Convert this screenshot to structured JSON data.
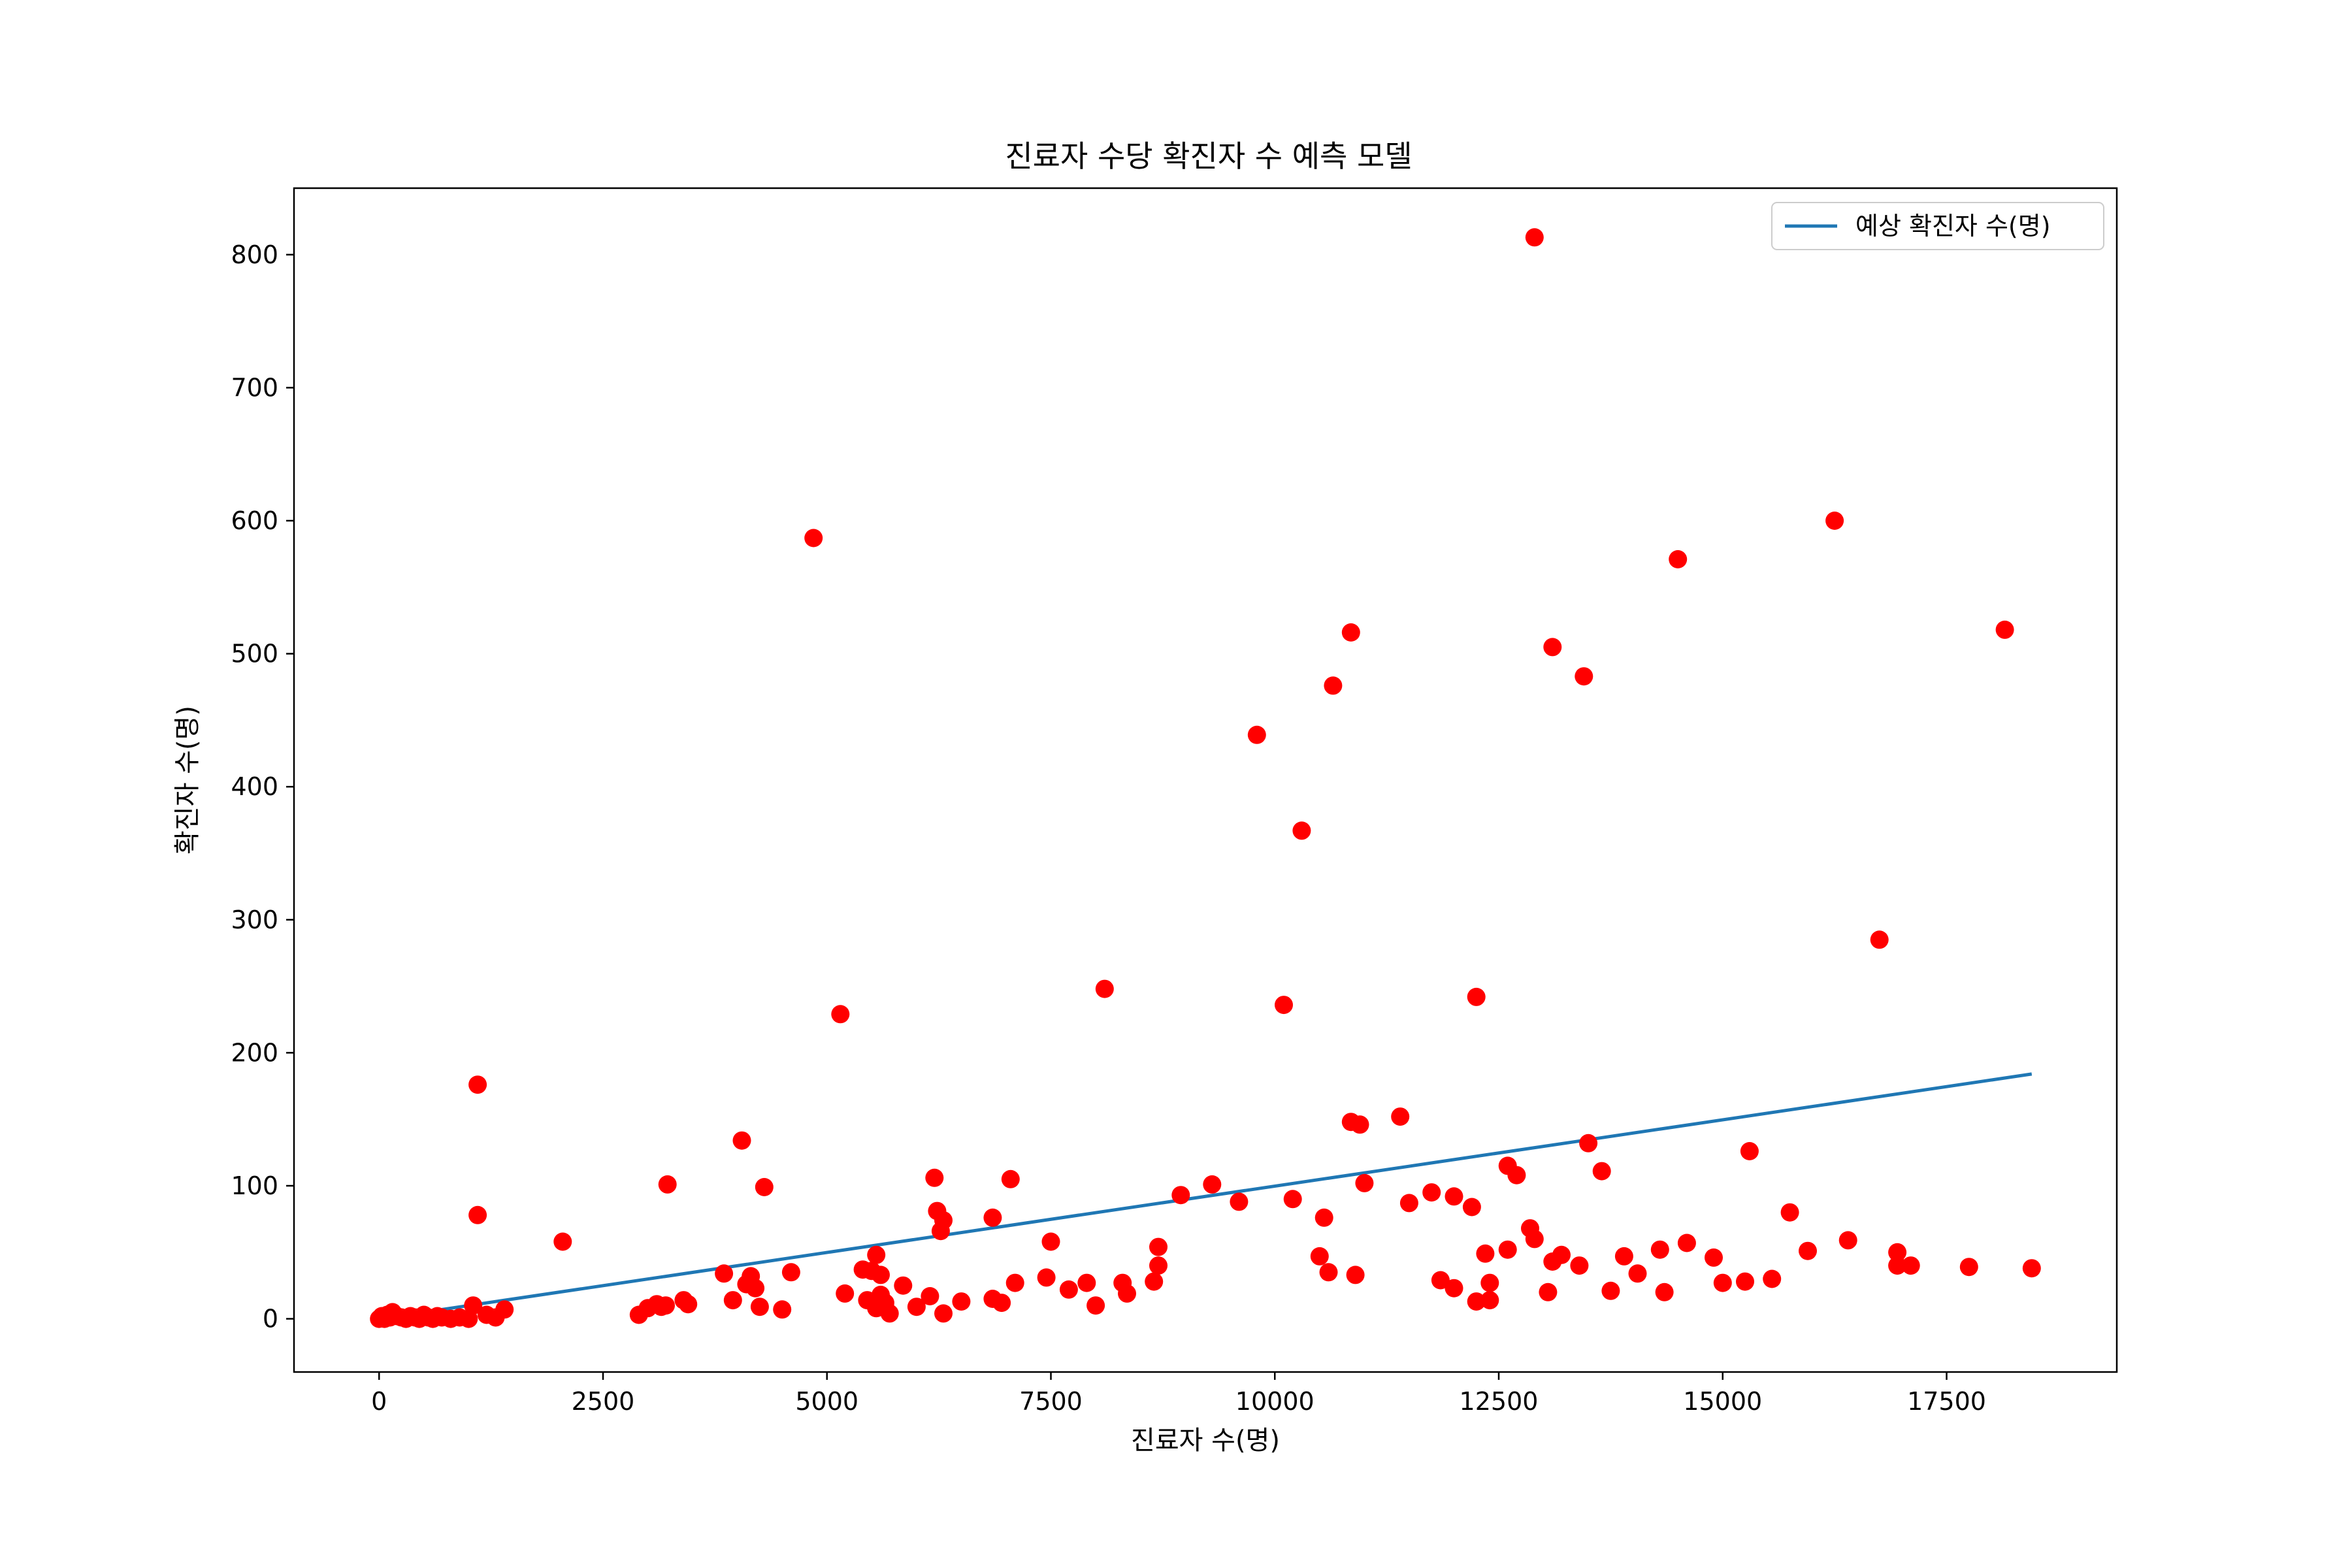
{
  "chart_data": {
    "type": "scatter",
    "title": "진료자 수당 확진자 수 예측 모델",
    "xlabel": "진료자 수(명)",
    "ylabel": "확진자 수(명)",
    "xlim": [
      -950,
      19400
    ],
    "ylim": [
      -40,
      850
    ],
    "x_ticks": [
      0,
      2500,
      5000,
      7500,
      10000,
      12500,
      15000,
      17500
    ],
    "y_ticks": [
      0,
      100,
      200,
      300,
      400,
      500,
      600,
      700,
      800
    ],
    "grid": false,
    "legend": {
      "position": "top-right",
      "entries": [
        "예상 확진자 수(명)"
      ]
    },
    "series": [
      {
        "name": "예상 확진자 수(명)",
        "kind": "line",
        "color": "#1f77b4",
        "points": [
          [
            0,
            0
          ],
          [
            18450,
            184
          ]
        ]
      },
      {
        "kind": "scatter",
        "color": "#ff0000",
        "points": [
          [
            0,
            0
          ],
          [
            30,
            2
          ],
          [
            60,
            0
          ],
          [
            90,
            3
          ],
          [
            120,
            1
          ],
          [
            150,
            5
          ],
          [
            200,
            2
          ],
          [
            250,
            1
          ],
          [
            300,
            0
          ],
          [
            350,
            2
          ],
          [
            400,
            1
          ],
          [
            450,
            0
          ],
          [
            500,
            3
          ],
          [
            550,
            1
          ],
          [
            600,
            0
          ],
          [
            650,
            2
          ],
          [
            700,
            1
          ],
          [
            800,
            0
          ],
          [
            900,
            1
          ],
          [
            1000,
            0
          ],
          [
            1050,
            10
          ],
          [
            1100,
            78
          ],
          [
            1100,
            176
          ],
          [
            1200,
            3
          ],
          [
            1300,
            1
          ],
          [
            1400,
            7
          ],
          [
            2050,
            58
          ],
          [
            2900,
            3
          ],
          [
            3000,
            8
          ],
          [
            3100,
            11
          ],
          [
            3150,
            9
          ],
          [
            3200,
            10
          ],
          [
            3220,
            101
          ],
          [
            3400,
            14
          ],
          [
            3450,
            11
          ],
          [
            3850,
            34
          ],
          [
            3950,
            14
          ],
          [
            4050,
            134
          ],
          [
            4100,
            26
          ],
          [
            4150,
            32
          ],
          [
            4200,
            23
          ],
          [
            4250,
            9
          ],
          [
            4300,
            99
          ],
          [
            4500,
            7
          ],
          [
            4600,
            35
          ],
          [
            4850,
            587
          ],
          [
            5150,
            229
          ],
          [
            5200,
            19
          ],
          [
            5400,
            37
          ],
          [
            5450,
            14
          ],
          [
            5500,
            36
          ],
          [
            5550,
            48
          ],
          [
            5600,
            33
          ],
          [
            5650,
            12
          ],
          [
            5700,
            4
          ],
          [
            5600,
            18
          ],
          [
            5550,
            8
          ],
          [
            5650,
            9
          ],
          [
            5850,
            25
          ],
          [
            6000,
            9
          ],
          [
            6150,
            17
          ],
          [
            6200,
            106
          ],
          [
            6230,
            81
          ],
          [
            6270,
            66
          ],
          [
            6300,
            74
          ],
          [
            6300,
            4
          ],
          [
            6500,
            13
          ],
          [
            6850,
            76
          ],
          [
            6850,
            15
          ],
          [
            6950,
            12
          ],
          [
            7050,
            105
          ],
          [
            7100,
            27
          ],
          [
            7450,
            31
          ],
          [
            7500,
            58
          ],
          [
            7700,
            22
          ],
          [
            7900,
            27
          ],
          [
            8000,
            10
          ],
          [
            8100,
            248
          ],
          [
            8300,
            27
          ],
          [
            8350,
            19
          ],
          [
            8650,
            28
          ],
          [
            8700,
            40
          ],
          [
            8700,
            54
          ],
          [
            8950,
            93
          ],
          [
            9300,
            101
          ],
          [
            9600,
            88
          ],
          [
            9800,
            439
          ],
          [
            10100,
            236
          ],
          [
            10200,
            90
          ],
          [
            10300,
            367
          ],
          [
            10500,
            47
          ],
          [
            10550,
            76
          ],
          [
            10600,
            35
          ],
          [
            10650,
            476
          ],
          [
            10850,
            148
          ],
          [
            10850,
            516
          ],
          [
            10900,
            33
          ],
          [
            10950,
            146
          ],
          [
            11000,
            102
          ],
          [
            11400,
            152
          ],
          [
            11500,
            87
          ],
          [
            11750,
            95
          ],
          [
            11850,
            29
          ],
          [
            12000,
            92
          ],
          [
            12000,
            23
          ],
          [
            12200,
            84
          ],
          [
            12250,
            242
          ],
          [
            12250,
            13
          ],
          [
            12350,
            49
          ],
          [
            12400,
            27
          ],
          [
            12400,
            14
          ],
          [
            12600,
            115
          ],
          [
            12600,
            52
          ],
          [
            12700,
            108
          ],
          [
            12850,
            68
          ],
          [
            12900,
            813
          ],
          [
            12900,
            60
          ],
          [
            13050,
            20
          ],
          [
            13100,
            43
          ],
          [
            13100,
            505
          ],
          [
            13200,
            48
          ],
          [
            13400,
            40
          ],
          [
            13450,
            483
          ],
          [
            13500,
            132
          ],
          [
            13650,
            111
          ],
          [
            13750,
            21
          ],
          [
            13900,
            47
          ],
          [
            14050,
            34
          ],
          [
            14300,
            52
          ],
          [
            14350,
            20
          ],
          [
            14500,
            571
          ],
          [
            14600,
            57
          ],
          [
            14900,
            46
          ],
          [
            15000,
            27
          ],
          [
            15250,
            28
          ],
          [
            15300,
            126
          ],
          [
            15550,
            30
          ],
          [
            15750,
            80
          ],
          [
            15950,
            51
          ],
          [
            16250,
            600
          ],
          [
            16400,
            59
          ],
          [
            16750,
            285
          ],
          [
            16950,
            50
          ],
          [
            16950,
            40
          ],
          [
            17100,
            40
          ],
          [
            17750,
            39
          ],
          [
            18150,
            518
          ],
          [
            18450,
            38
          ]
        ]
      }
    ]
  }
}
